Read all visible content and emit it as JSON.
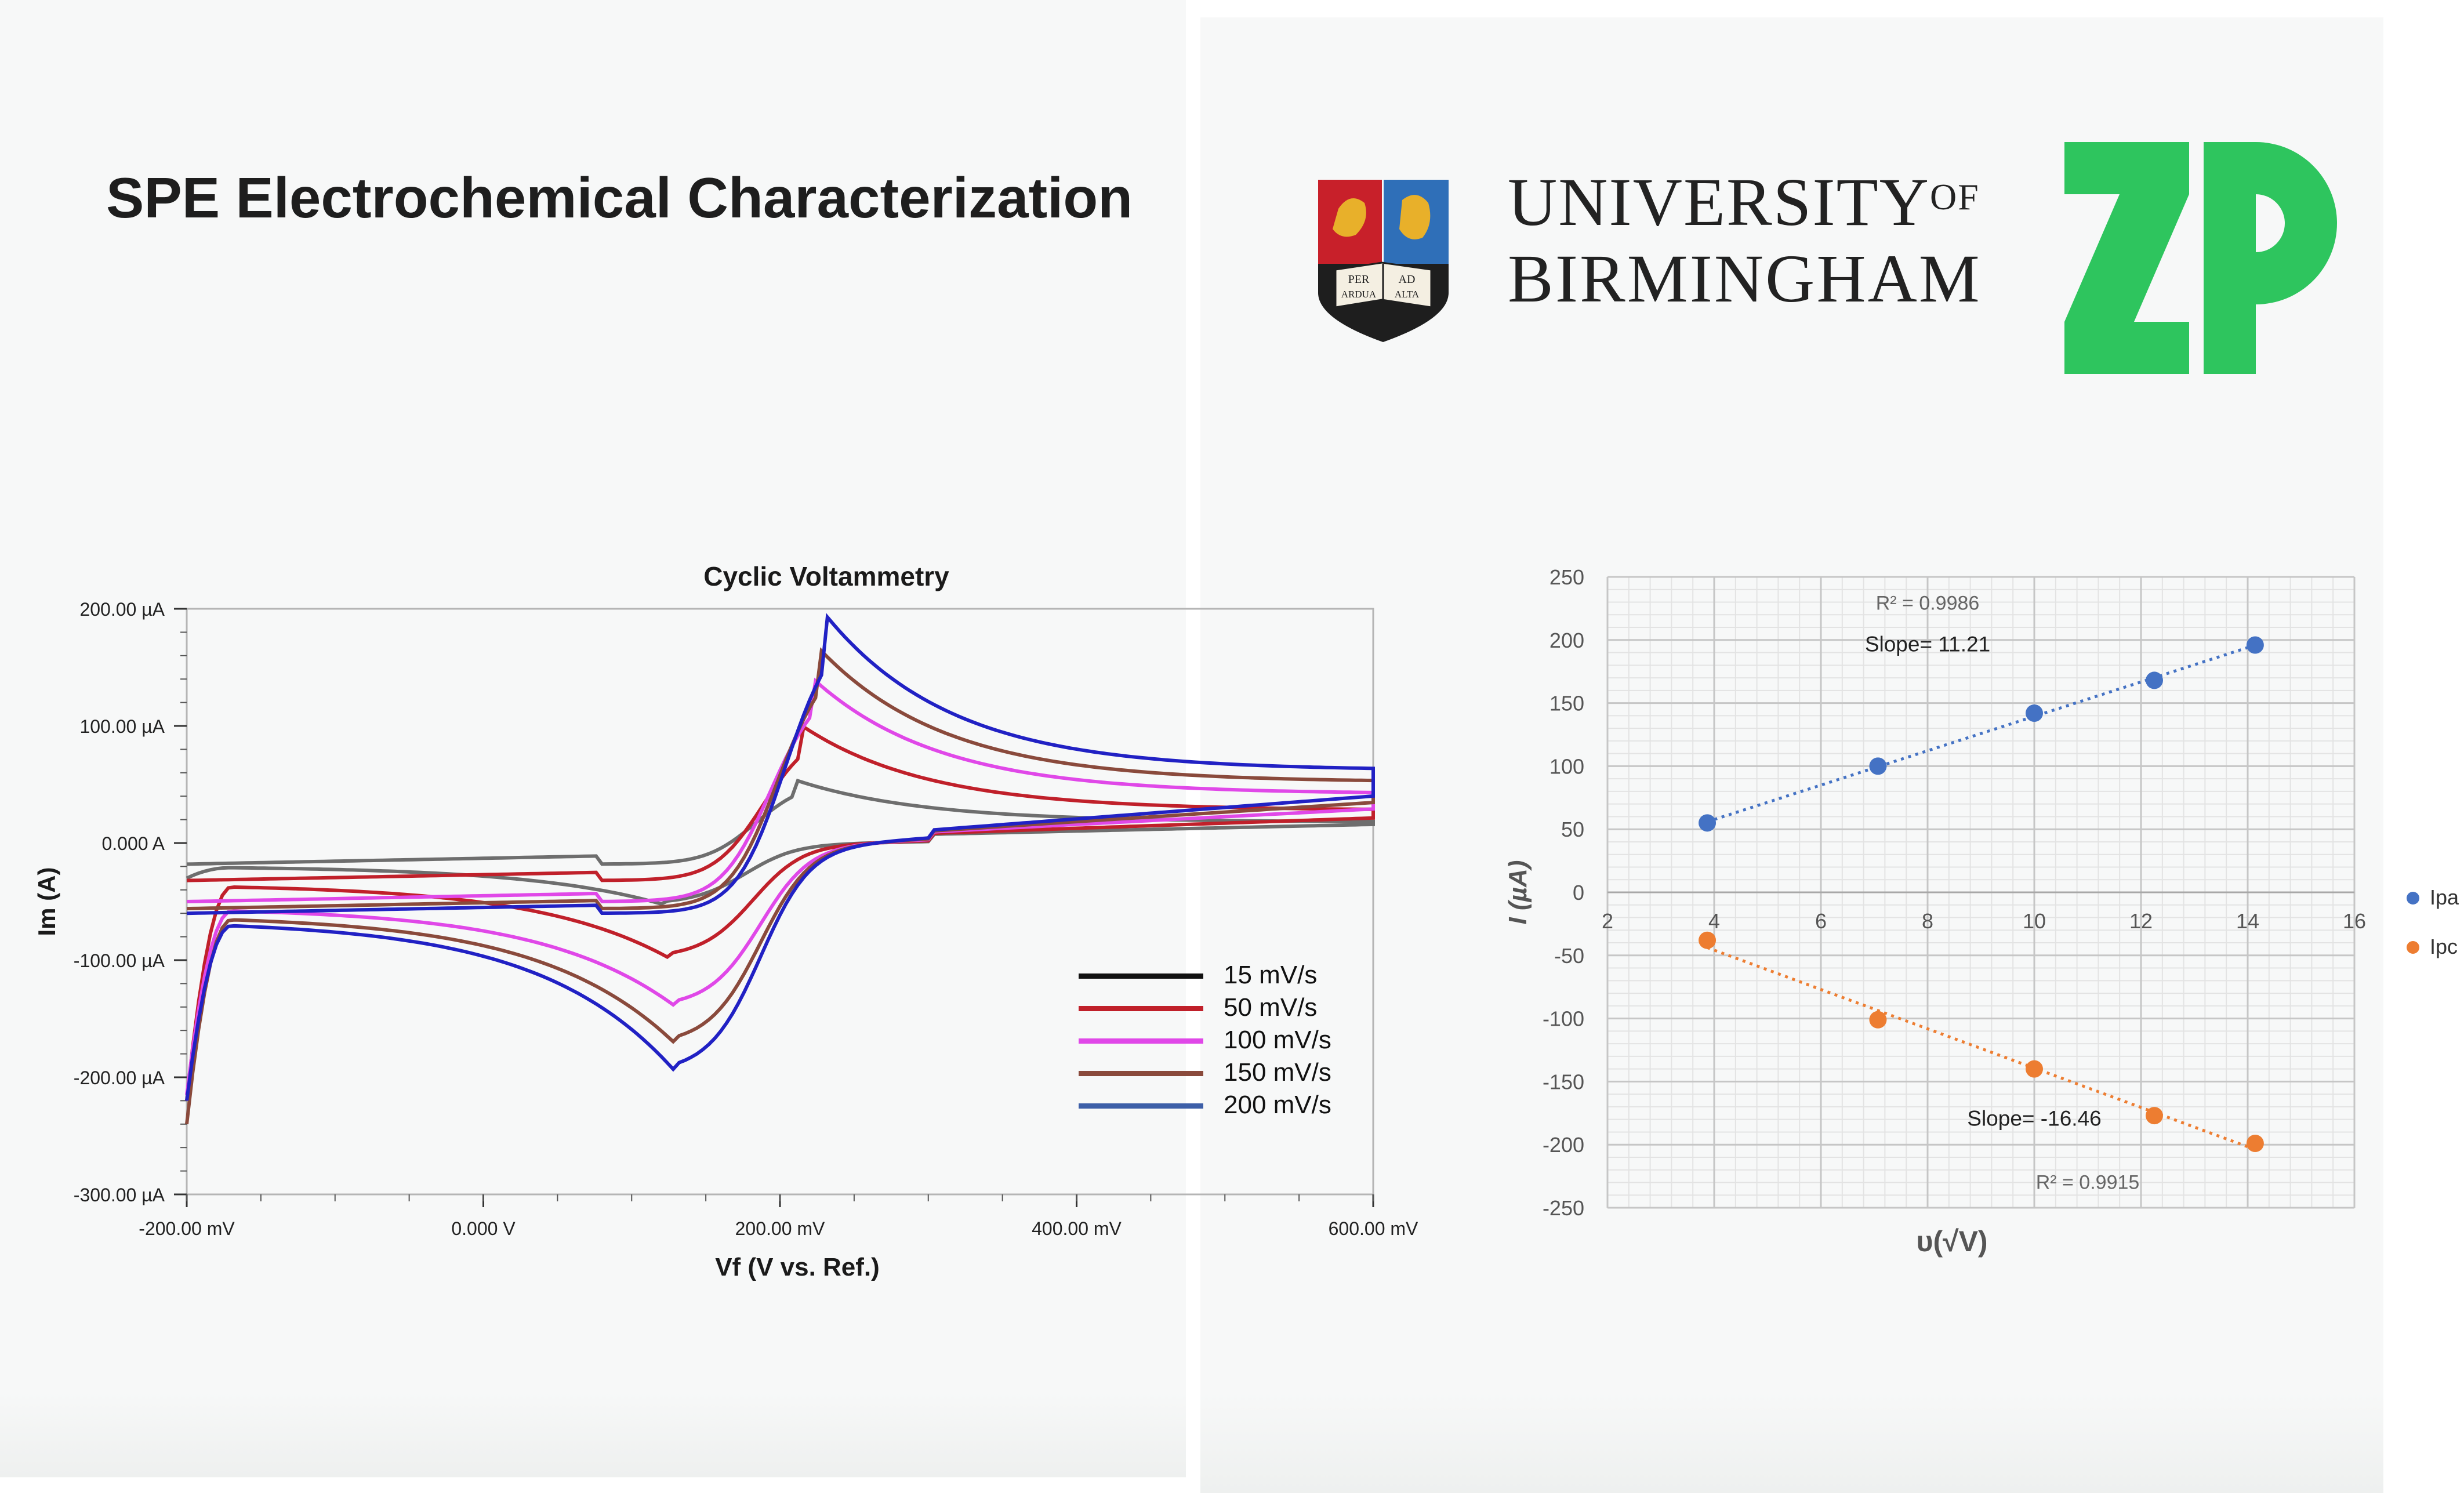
{
  "title": "SPE Electrochemical Characterization",
  "logos": {
    "university": {
      "line1": "UNIVERSITY",
      "line1_suffix": "OF",
      "line2": "BIRMINGHAM"
    },
    "crest": {
      "motto_left_top": "PER",
      "motto_left_bottom": "ARDUA",
      "motto_right_top": "AD",
      "motto_right_bottom": "ALTA"
    },
    "company": {
      "text": "ZP",
      "color": "#2ec55e"
    }
  },
  "chart_data": [
    {
      "type": "line",
      "title": "Cyclic Voltammetry",
      "xlabel": "Vf (V vs. Ref.)",
      "ylabel": "Im (A)",
      "xlim": [
        -0.2,
        0.6
      ],
      "ylim": [
        -300,
        200
      ],
      "x_ticks": [
        {
          "value": -0.2,
          "label": "-200.00 mV"
        },
        {
          "value": 0.0,
          "label": "0.000 V"
        },
        {
          "value": 0.2,
          "label": "200.00 mV"
        },
        {
          "value": 0.4,
          "label": "400.00 mV"
        },
        {
          "value": 0.6,
          "label": "600.00 mV"
        }
      ],
      "y_ticks": [
        {
          "value": 200,
          "label": "200.00 µA"
        },
        {
          "value": 100,
          "label": "100.00 µA"
        },
        {
          "value": 0,
          "label": "0.000 A"
        },
        {
          "value": -100,
          "label": "-100.00 µA"
        },
        {
          "value": -200,
          "label": "-200.00 µA"
        },
        {
          "value": -300,
          "label": "-300.00 µA"
        }
      ],
      "legend": [
        {
          "label": "15 mV/s",
          "color": "#111111"
        },
        {
          "label": "50 mV/s",
          "color": "#c0202a"
        },
        {
          "label": "100 mV/s",
          "color": "#e048e8"
        },
        {
          "label": "150 mV/s",
          "color": "#8a4a3c"
        },
        {
          "label": "200 mV/s",
          "color": "#3d5fa8"
        }
      ],
      "series": [
        {
          "name": "15 mV/s",
          "color": "#6e6e6e",
          "Ipa": 54,
          "Epa": 0.21,
          "Ipc": -52,
          "Epc": 0.12,
          "start": -18,
          "end": 18,
          "ci": -30
        },
        {
          "name": "50 mV/s",
          "color": "#c0202a",
          "Ipa": 100,
          "Epa": 0.215,
          "Ipc": -98,
          "Epc": 0.125,
          "start": -32,
          "end": 28,
          "ci": -220
        },
        {
          "name": "100 mV/s",
          "color": "#e048e8",
          "Ipa": 143,
          "Epa": 0.22,
          "Ipc": -140,
          "Epc": 0.13,
          "start": -50,
          "end": 42,
          "ci": -215
        },
        {
          "name": "150 mV/s",
          "color": "#8a4a3c",
          "Ipa": 168,
          "Epa": 0.225,
          "Ipc": -172,
          "Epc": 0.13,
          "start": -56,
          "end": 52,
          "ci": -240
        },
        {
          "name": "200 mV/s",
          "color": "#2121c4",
          "Ipa": 196,
          "Epa": 0.23,
          "Ipc": -196,
          "Epc": 0.13,
          "start": -60,
          "end": 62,
          "ci": -220
        }
      ]
    },
    {
      "type": "scatter",
      "title": "",
      "xlabel": "υ(√V)",
      "ylabel": "I (µA)",
      "xlim": [
        2,
        16
      ],
      "ylim": [
        -250,
        250
      ],
      "x_ticks": [
        2,
        4,
        6,
        8,
        10,
        12,
        14,
        16
      ],
      "y_ticks": [
        250,
        200,
        150,
        100,
        50,
        0,
        -50,
        -100,
        -150,
        -200,
        -250
      ],
      "series": [
        {
          "name": "Ipa",
          "color": "#4472c4",
          "x": [
            3.87,
            7.07,
            10.0,
            12.25,
            14.14
          ],
          "y": [
            55,
            100,
            142,
            168,
            196
          ]
        },
        {
          "name": "Ipc",
          "color": "#ed7d31",
          "x": [
            3.87,
            7.07,
            10.0,
            12.25,
            14.14
          ],
          "y": [
            -38,
            -101,
            -140,
            -177,
            -199
          ]
        }
      ],
      "trendlines": [
        {
          "series": "Ipa",
          "r2": "R² = 0.9986",
          "slope": "Slope= 11.21"
        },
        {
          "series": "Ipc",
          "r2": "R² = 0.9915",
          "slope": "Slope= -16.46"
        }
      ]
    }
  ]
}
